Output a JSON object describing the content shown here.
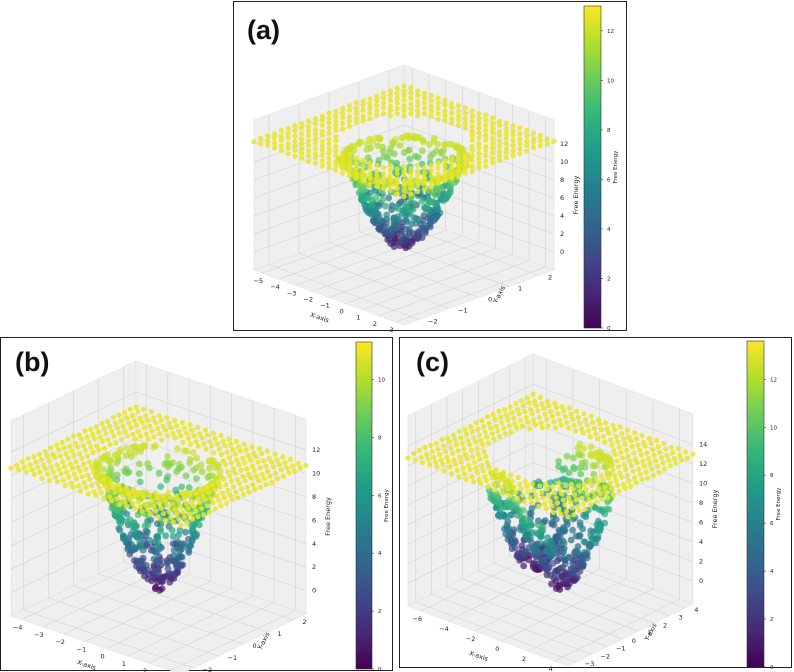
{
  "chart_data": [
    {
      "id": "a",
      "type": "scatter",
      "label": "(a)",
      "xlabel": "X-axis",
      "ylabel": "Y-axis",
      "zlabel": "Free Energy",
      "colorbar_label": "Free Energy",
      "xticks": [
        "−5",
        "−4",
        "−3",
        "−2",
        "−1",
        "0",
        "1",
        "2",
        "3"
      ],
      "yticks": [
        "−2",
        "−1",
        "0",
        "1",
        "2"
      ],
      "zticks": [
        "0",
        "2",
        "4",
        "6",
        "8",
        "10",
        "12"
      ],
      "colorbar_ticks": [
        "0",
        "2",
        "4",
        "6",
        "8",
        "10",
        "12"
      ],
      "colorbar_max": 13,
      "zlim": [
        0,
        12
      ],
      "wells": 1
    },
    {
      "id": "b",
      "type": "scatter",
      "label": "(b)",
      "xlabel": "X-axis",
      "ylabel": "Y-axis",
      "zlabel": "Free Energy",
      "colorbar_label": "Free Energy",
      "xticks": [
        "−4",
        "−3",
        "−2",
        "−1",
        "0",
        "1",
        "2",
        "3"
      ],
      "yticks": [
        "−2",
        "−1",
        "0",
        "1",
        "2"
      ],
      "zticks": [
        "0",
        "2",
        "4",
        "6",
        "8",
        "10",
        "12"
      ],
      "colorbar_ticks": [
        "0",
        "2",
        "4",
        "6",
        "8",
        "10"
      ],
      "colorbar_max": 11.3,
      "zlim": [
        0,
        12
      ],
      "wells": 1
    },
    {
      "id": "c",
      "type": "scatter",
      "label": "(c)",
      "xlabel": "X-axis",
      "ylabel": "Y-axis",
      "zlabel": "Free Energy",
      "colorbar_label": "Free Energy",
      "xticks": [
        "−6",
        "−4",
        "−2",
        "0",
        "2",
        "4"
      ],
      "yticks": [
        "−3",
        "−2",
        "−1",
        "0",
        "1",
        "2",
        "3",
        "4"
      ],
      "zticks": [
        "0",
        "2",
        "4",
        "6",
        "8",
        "10",
        "12",
        "14"
      ],
      "colorbar_ticks": [
        "0",
        "2",
        "4",
        "6",
        "8",
        "10",
        "12"
      ],
      "colorbar_max": 13.6,
      "zlim": [
        0,
        14
      ],
      "wells": 2
    }
  ]
}
